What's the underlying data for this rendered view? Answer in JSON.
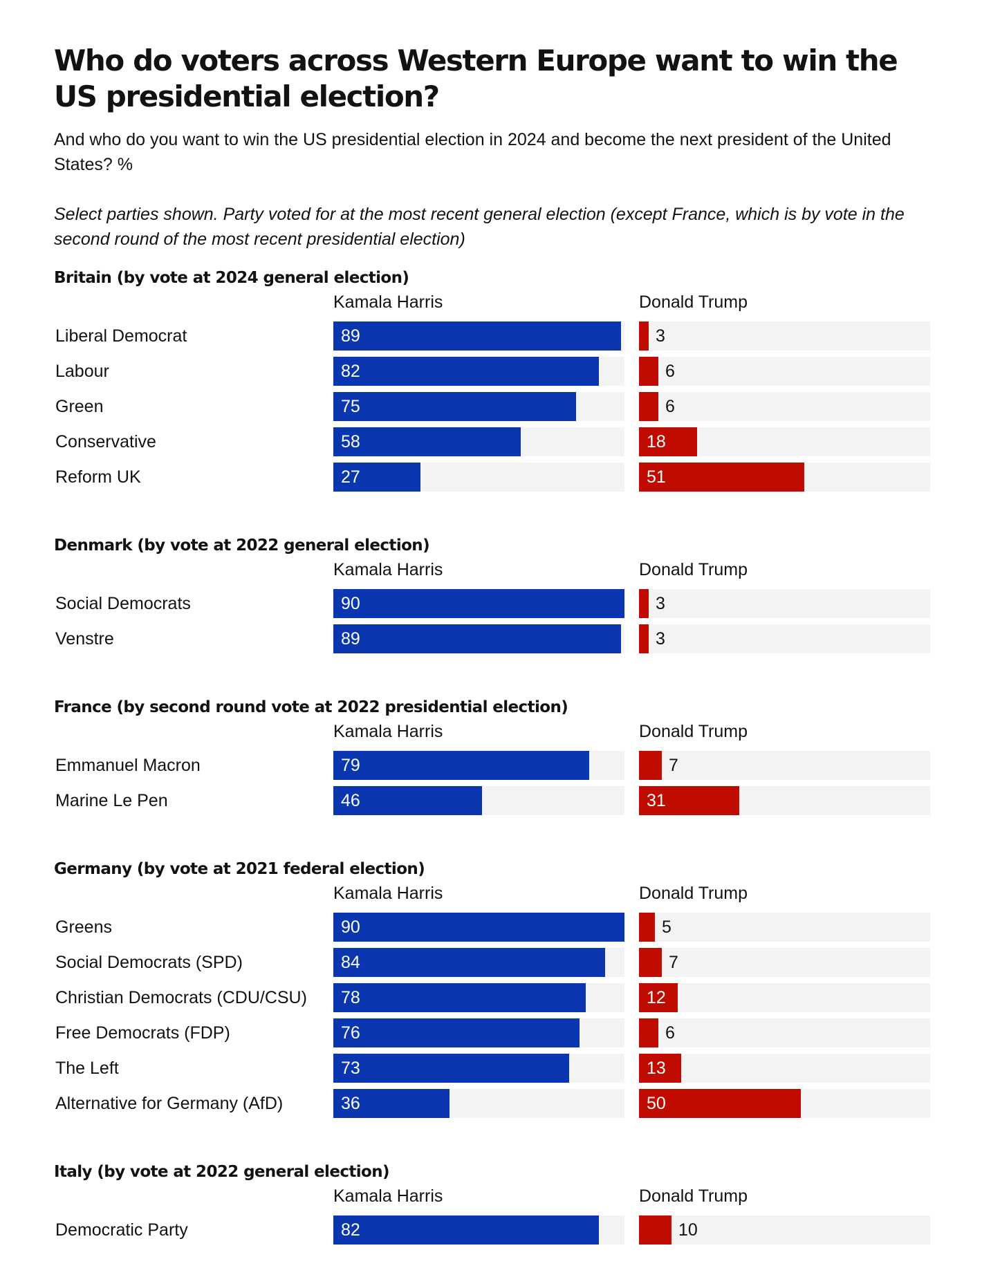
{
  "title": "Who do voters across Western Europe want to win the US presidential election?",
  "subtitle": "And who do you want to win the US presidential election in 2024 and become the next president of the United States? %",
  "note": "Select parties shown. Party voted for at the most recent general election (except France, which is by vote in the second round of the most recent presidential election)",
  "colors": {
    "harris": "#0a37b0",
    "trump": "#c00c00",
    "track": "#f3f3f3"
  },
  "chart_data": {
    "type": "bar",
    "orientation": "horizontal",
    "xlim": [
      0,
      90
    ],
    "column_headers": [
      "Kamala Harris",
      "Donald Trump"
    ],
    "sections": [
      {
        "title": "Britain (by vote at 2024 general election)",
        "categories": [
          "Liberal Democrat",
          "Labour",
          "Green",
          "Conservative",
          "Reform UK"
        ],
        "series": [
          {
            "name": "Kamala Harris",
            "values": [
              89,
              82,
              75,
              58,
              27
            ]
          },
          {
            "name": "Donald Trump",
            "values": [
              3,
              6,
              6,
              18,
              51
            ]
          }
        ]
      },
      {
        "title": "Denmark (by vote at 2022 general election)",
        "categories": [
          "Social Democrats",
          "Venstre"
        ],
        "series": [
          {
            "name": "Kamala Harris",
            "values": [
              90,
              89
            ]
          },
          {
            "name": "Donald Trump",
            "values": [
              3,
              3
            ]
          }
        ]
      },
      {
        "title": "France (by second round vote at 2022 presidential election)",
        "categories": [
          "Emmanuel Macron",
          "Marine Le Pen"
        ],
        "series": [
          {
            "name": "Kamala Harris",
            "values": [
              79,
              46
            ]
          },
          {
            "name": "Donald Trump",
            "values": [
              7,
              31
            ]
          }
        ]
      },
      {
        "title": "Germany (by vote at 2021 federal election)",
        "categories": [
          "Greens",
          "Social Democrats (SPD)",
          "Christian Democrats (CDU/CSU)",
          "Free Democrats (FDP)",
          "The Left",
          "Alternative for Germany (AfD)"
        ],
        "series": [
          {
            "name": "Kamala Harris",
            "values": [
              90,
              84,
              78,
              76,
              73,
              36
            ]
          },
          {
            "name": "Donald Trump",
            "values": [
              5,
              7,
              12,
              6,
              13,
              50
            ]
          }
        ]
      },
      {
        "title": "Italy (by vote at 2022 general election)",
        "categories": [
          "Democratic Party"
        ],
        "series": [
          {
            "name": "Kamala Harris",
            "values": [
              82
            ]
          },
          {
            "name": "Donald Trump",
            "values": [
              10
            ]
          }
        ]
      }
    ]
  }
}
